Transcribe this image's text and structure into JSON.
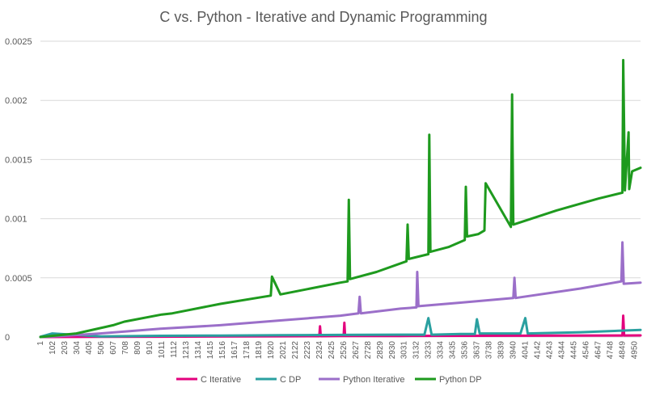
{
  "chart_data": {
    "type": "line",
    "title": "C vs. Python - Iterative and Dynamic Programming",
    "xlabel": "",
    "ylabel": "",
    "xlim": [
      1,
      5000
    ],
    "ylim": [
      0,
      0.0025
    ],
    "y_ticks": [
      "0",
      "0.0005",
      "0.001",
      "0.0015",
      "0.002",
      "0.0025"
    ],
    "x_tick_labels": [
      "1",
      "102",
      "203",
      "304",
      "405",
      "506",
      "607",
      "708",
      "809",
      "910",
      "1011",
      "1112",
      "1213",
      "1314",
      "1415",
      "1516",
      "1617",
      "1718",
      "1819",
      "1920",
      "2021",
      "2122",
      "2223",
      "2324",
      "2425",
      "2526",
      "2627",
      "2728",
      "2829",
      "2930",
      "3031",
      "3132",
      "3233",
      "3334",
      "3435",
      "3536",
      "3637",
      "3738",
      "3839",
      "3940",
      "4041",
      "4142",
      "4243",
      "4344",
      "4445",
      "4546",
      "4647",
      "4748",
      "4849",
      "4950"
    ],
    "grid": true,
    "legend_position": "bottom",
    "series": [
      {
        "name": "C Iterative",
        "color": "#e3007d",
        "x": [
          1,
          1000,
          2000,
          2324,
          2330,
          2336,
          2500,
          2527,
          2533,
          2539,
          3000,
          4000,
          4849,
          4856,
          4863,
          5000
        ],
        "y": [
          0,
          3e-06,
          6e-06,
          7e-06,
          9e-05,
          7e-06,
          8e-06,
          8e-06,
          0.00012,
          8e-06,
          9e-06,
          1.1e-05,
          1.3e-05,
          0.00018,
          1.3e-05,
          1.4e-05
        ]
      },
      {
        "name": "C DP",
        "color": "#2aa0a0",
        "x": [
          1,
          100,
          500,
          1000,
          1500,
          2000,
          2500,
          3000,
          3200,
          3233,
          3260,
          3500,
          3620,
          3637,
          3660,
          4000,
          4040,
          4060,
          4500,
          5000
        ],
        "y": [
          2e-06,
          3e-05,
          5e-06,
          1e-05,
          1.2e-05,
          1.5e-05,
          1.8e-05,
          2e-05,
          2e-05,
          0.00016,
          2e-05,
          2.5e-05,
          2.5e-05,
          0.00015,
          3e-05,
          3e-05,
          0.00016,
          3e-05,
          4e-05,
          6e-05
        ]
      },
      {
        "name": "Python Iterative",
        "color": "#9b6fc9",
        "x": [
          1,
          200,
          500,
          1000,
          1500,
          2000,
          2500,
          2650,
          2660,
          2670,
          3000,
          3133,
          3140,
          3150,
          3500,
          3940,
          3950,
          3960,
          4500,
          4840,
          4849,
          4860,
          5000
        ],
        "y": [
          0,
          1e-05,
          3e-05,
          7e-05,
          0.0001,
          0.00014,
          0.00018,
          0.0002,
          0.00034,
          0.0002,
          0.00024,
          0.00025,
          0.00055,
          0.00026,
          0.00029,
          0.00033,
          0.0005,
          0.00033,
          0.00041,
          0.00047,
          0.0008,
          0.00045,
          0.00046
        ]
      },
      {
        "name": "Python DP",
        "color": "#1e9a1e",
        "x": [
          1,
          300,
          607,
          700,
          1011,
          1100,
          1500,
          1920,
          1930,
          2000,
          2500,
          2560,
          2570,
          2580,
          2800,
          3050,
          3060,
          3070,
          3233,
          3240,
          3250,
          3400,
          3536,
          3545,
          3555,
          3650,
          3700,
          3710,
          3920,
          3930,
          3940,
          4300,
          4650,
          4849,
          4856,
          4870,
          4900,
          4906,
          4930,
          5000
        ],
        "y": [
          0,
          3e-05,
          0.0001,
          0.00013,
          0.00019,
          0.0002,
          0.00028,
          0.00035,
          0.00051,
          0.00036,
          0.00046,
          0.00047,
          0.00116,
          0.00049,
          0.00055,
          0.00064,
          0.00095,
          0.00066,
          0.0007,
          0.00171,
          0.00072,
          0.00076,
          0.00082,
          0.00127,
          0.00085,
          0.00087,
          0.0009,
          0.0013,
          0.00093,
          0.00205,
          0.00095,
          0.00107,
          0.00117,
          0.00122,
          0.00234,
          0.00124,
          0.00173,
          0.00125,
          0.0014,
          0.00143
        ]
      }
    ]
  }
}
